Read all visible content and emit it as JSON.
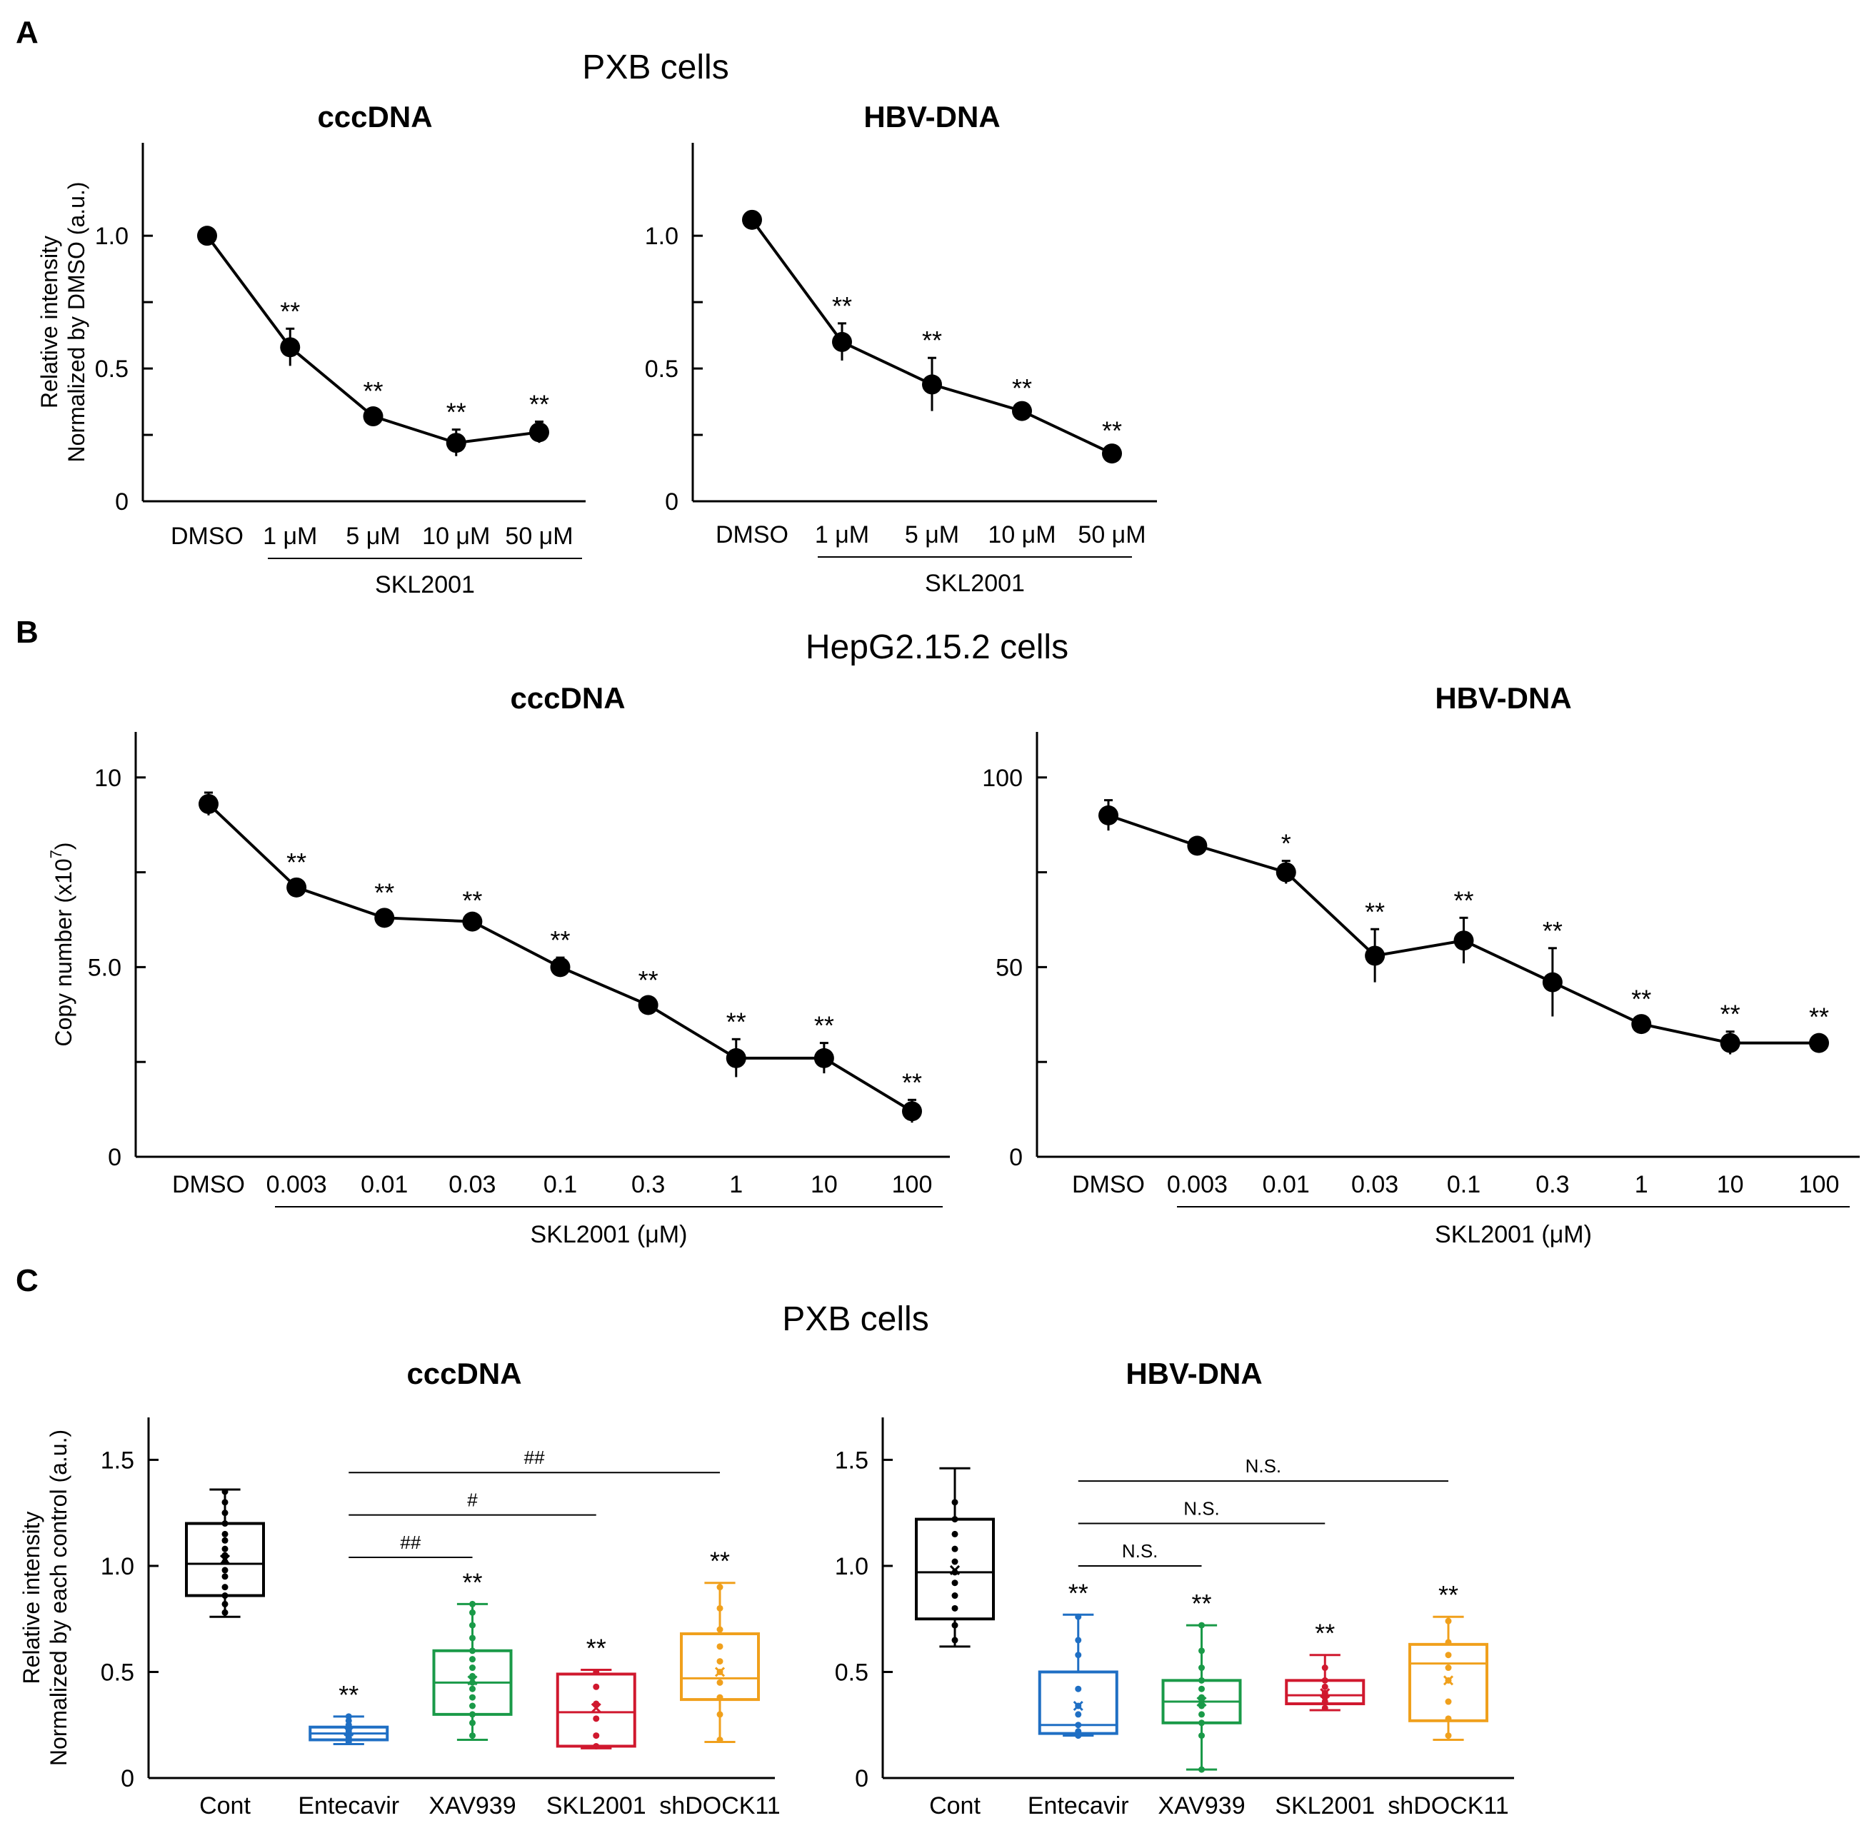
{
  "panels": {
    "A": "A",
    "B": "B",
    "C": "C"
  },
  "section_titles": {
    "A": "PXB cells",
    "B": "HepG2.15.2 cells",
    "C": "PXB cells"
  },
  "chart_data": [
    {
      "id": "A_ccc",
      "type": "line",
      "title": "cccDNA",
      "ylabel_lines": [
        "Relative intensity",
        "Normalized by DMSO (a.u.)"
      ],
      "ylim": [
        0,
        1.35
      ],
      "yticks": [
        0,
        0.5,
        1.0
      ],
      "yticklabels": [
        "0",
        "0.5",
        "1.0"
      ],
      "categories": [
        "DMSO",
        "1 μM",
        "5 μM",
        "10 μM",
        "50 μM"
      ],
      "values": [
        1.0,
        0.58,
        0.32,
        0.22,
        0.26
      ],
      "errors": [
        0.0,
        0.07,
        0.03,
        0.05,
        0.04
      ],
      "sig": [
        "",
        "**",
        "**",
        "**",
        "**"
      ],
      "group_label": "SKL2001"
    },
    {
      "id": "A_hbv",
      "type": "line",
      "title": "HBV-DNA",
      "ylim": [
        0,
        1.35
      ],
      "yticks": [
        0,
        0.5,
        1.0
      ],
      "yticklabels": [
        "0",
        "0.5",
        "1.0"
      ],
      "categories": [
        "DMSO",
        "1 μM",
        "5 μM",
        "10 μM",
        "50 μM"
      ],
      "values": [
        1.06,
        0.6,
        0.44,
        0.34,
        0.18
      ],
      "errors": [
        0.0,
        0.07,
        0.1,
        0.02,
        0.02
      ],
      "sig": [
        "",
        "**",
        "**",
        "**",
        "**"
      ],
      "group_label": "SKL2001"
    },
    {
      "id": "B_ccc",
      "type": "line",
      "title": "cccDNA",
      "ylabel": "Copy number (x10",
      "ylabel_sup": "7",
      "ylim": [
        0,
        11.2
      ],
      "yticks": [
        0,
        5,
        10
      ],
      "yticklabels": [
        "0",
        "5.0",
        "10"
      ],
      "categories": [
        "DMSO",
        "0.003",
        "0.01",
        "0.03",
        "0.1",
        "0.3",
        "1",
        "10",
        "100"
      ],
      "values": [
        9.3,
        7.1,
        6.3,
        6.2,
        5.0,
        4.0,
        2.6,
        2.6,
        1.2
      ],
      "errors": [
        0.3,
        0.2,
        0.2,
        0.1,
        0.25,
        0.2,
        0.5,
        0.4,
        0.3
      ],
      "sig": [
        "",
        "**",
        "**",
        "**",
        "**",
        "**",
        "**",
        "**",
        "**"
      ],
      "group_label": "SKL2001 (μM)"
    },
    {
      "id": "B_hbv",
      "type": "line",
      "title": "HBV-DNA",
      "ylim": [
        0,
        112
      ],
      "yticks": [
        0,
        50,
        100
      ],
      "yticklabels": [
        "0",
        "50",
        "100"
      ],
      "categories": [
        "DMSO",
        "0.003",
        "0.01",
        "0.03",
        "0.1",
        "0.3",
        "1",
        "10",
        "100"
      ],
      "values": [
        90,
        82,
        75,
        53,
        57,
        46,
        35,
        30,
        30
      ],
      "errors": [
        4,
        2,
        3,
        7,
        6,
        9,
        2,
        3,
        0
      ],
      "sig": [
        "",
        "",
        "*",
        "**",
        "**",
        "**",
        "**",
        "**",
        "**"
      ],
      "group_label": "SKL2001 (μM)"
    },
    {
      "id": "C_ccc",
      "type": "box",
      "title": "cccDNA",
      "ylabel_lines": [
        "Relative intensity",
        "Normalized by each control (a.u.)"
      ],
      "ylim": [
        0,
        1.7
      ],
      "yticks": [
        0,
        0.5,
        1.0,
        1.5
      ],
      "yticklabels": [
        "0",
        "0.5",
        "1.0",
        "1.5"
      ],
      "categories": [
        "Cont",
        "Entecavir",
        "XAV939",
        "SKL2001",
        "shDOCK11"
      ],
      "colors": [
        "#000000",
        "#1f6fc4",
        "#1a9a48",
        "#d0182e",
        "#f0a01c"
      ],
      "boxes": [
        {
          "min": 0.76,
          "q1": 0.86,
          "median": 1.01,
          "q3": 1.2,
          "max": 1.36,
          "mean": 1.03,
          "points": [
            0.78,
            0.82,
            0.86,
            0.9,
            0.95,
            0.98,
            1.02,
            1.05,
            1.08,
            1.12,
            1.15,
            1.2,
            1.25,
            1.3,
            1.35
          ]
        },
        {
          "min": 0.16,
          "q1": 0.18,
          "median": 0.21,
          "q3": 0.24,
          "max": 0.29,
          "mean": 0.22,
          "points": [
            0.17,
            0.19,
            0.2,
            0.21,
            0.22,
            0.23,
            0.25,
            0.27,
            0.29
          ]
        },
        {
          "min": 0.18,
          "q1": 0.3,
          "median": 0.45,
          "q3": 0.6,
          "max": 0.82,
          "mean": 0.46,
          "points": [
            0.2,
            0.26,
            0.3,
            0.34,
            0.38,
            0.42,
            0.45,
            0.48,
            0.52,
            0.56,
            0.6,
            0.66,
            0.72,
            0.78,
            0.82
          ]
        },
        {
          "min": 0.14,
          "q1": 0.15,
          "median": 0.31,
          "q3": 0.49,
          "max": 0.51,
          "mean": 0.33,
          "points": [
            0.15,
            0.2,
            0.28,
            0.35,
            0.43,
            0.5
          ]
        },
        {
          "min": 0.17,
          "q1": 0.37,
          "median": 0.47,
          "q3": 0.68,
          "max": 0.92,
          "mean": 0.5,
          "points": [
            0.18,
            0.3,
            0.38,
            0.45,
            0.5,
            0.55,
            0.62,
            0.7,
            0.8,
            0.9
          ]
        }
      ],
      "sig": [
        "",
        "**",
        "**",
        "**",
        "**"
      ],
      "comparisons": [
        {
          "from": 1,
          "to": 2,
          "label": "##",
          "y": 1.04
        },
        {
          "from": 1,
          "to": 3,
          "label": "#",
          "y": 1.24
        },
        {
          "from": 1,
          "to": 4,
          "label": "##",
          "y": 1.44
        }
      ]
    },
    {
      "id": "C_hbv",
      "type": "box",
      "title": "HBV-DNA",
      "ylim": [
        0,
        1.7
      ],
      "yticks": [
        0,
        0.5,
        1.0,
        1.5
      ],
      "yticklabels": [
        "0",
        "0.5",
        "1.0",
        "1.5"
      ],
      "categories": [
        "Cont",
        "Entecavir",
        "XAV939",
        "SKL2001",
        "shDOCK11"
      ],
      "colors": [
        "#000000",
        "#1f6fc4",
        "#1a9a48",
        "#d0182e",
        "#f0a01c"
      ],
      "boxes": [
        {
          "min": 0.62,
          "q1": 0.75,
          "median": 0.97,
          "q3": 1.22,
          "max": 1.46,
          "mean": 0.98,
          "points": [
            0.65,
            0.72,
            0.8,
            0.86,
            0.92,
            0.97,
            1.02,
            1.08,
            1.15,
            1.22,
            1.3
          ]
        },
        {
          "min": 0.2,
          "q1": 0.21,
          "median": 0.25,
          "q3": 0.5,
          "max": 0.77,
          "mean": 0.34,
          "points": [
            0.2,
            0.22,
            0.25,
            0.3,
            0.34,
            0.42,
            0.58,
            0.65,
            0.76
          ]
        },
        {
          "min": 0.04,
          "q1": 0.26,
          "median": 0.36,
          "q3": 0.46,
          "max": 0.72,
          "mean": 0.36,
          "points": [
            0.04,
            0.2,
            0.26,
            0.3,
            0.34,
            0.38,
            0.42,
            0.46,
            0.52,
            0.6,
            0.72
          ]
        },
        {
          "min": 0.32,
          "q1": 0.35,
          "median": 0.39,
          "q3": 0.46,
          "max": 0.58,
          "mean": 0.4,
          "points": [
            0.33,
            0.36,
            0.38,
            0.4,
            0.43,
            0.46,
            0.52
          ]
        },
        {
          "min": 0.18,
          "q1": 0.27,
          "median": 0.54,
          "q3": 0.63,
          "max": 0.76,
          "mean": 0.46,
          "points": [
            0.2,
            0.28,
            0.36,
            0.46,
            0.52,
            0.58,
            0.64,
            0.74
          ]
        }
      ],
      "sig": [
        "",
        "**",
        "**",
        "**",
        "**"
      ],
      "comparisons": [
        {
          "from": 1,
          "to": 2,
          "label": "N.S.",
          "y": 1.0
        },
        {
          "from": 1,
          "to": 3,
          "label": "N.S.",
          "y": 1.2
        },
        {
          "from": 1,
          "to": 4,
          "label": "N.S.",
          "y": 1.4
        }
      ]
    }
  ]
}
